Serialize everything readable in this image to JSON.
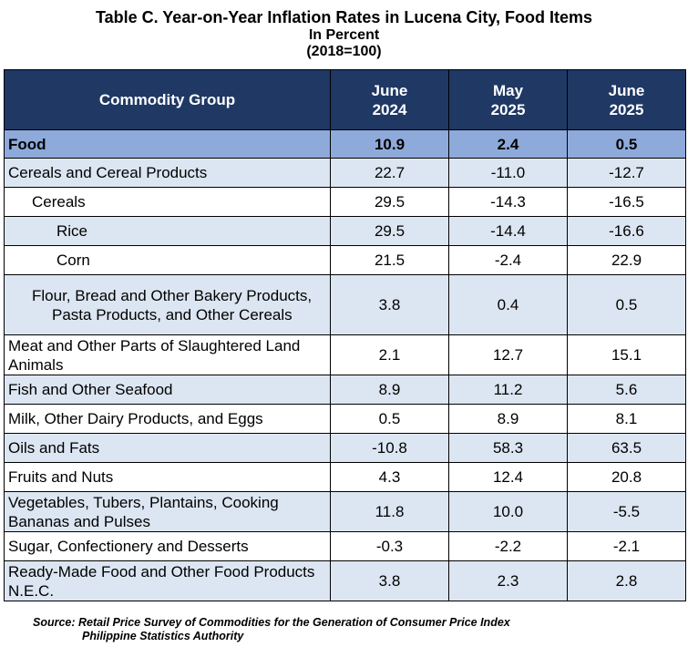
{
  "title": "Table C. Year-on-Year Inflation Rates in Lucena City, Food Items",
  "subtitle": "In Percent",
  "base": "(2018=100)",
  "columns": [
    "Commodity Group",
    "June\n2024",
    "May\n2025",
    "June\n2025"
  ],
  "rows": [
    {
      "label": "Food",
      "values": [
        "10.9",
        "2.4",
        "0.5"
      ]
    },
    {
      "label": "Cereals and Cereal Products",
      "values": [
        "22.7",
        "-11.0",
        "-12.7"
      ]
    },
    {
      "label": "Cereals",
      "values": [
        "29.5",
        "-14.3",
        "-16.5"
      ]
    },
    {
      "label": "Rice",
      "values": [
        "29.5",
        "-14.4",
        "-16.6"
      ]
    },
    {
      "label": "Corn",
      "values": [
        "21.5",
        "-2.4",
        "22.9"
      ]
    },
    {
      "label": "Flour, Bread and Other Bakery Products, Pasta Products, and Other Cereals",
      "values": [
        "3.8",
        "0.4",
        "0.5"
      ]
    },
    {
      "label": "Meat and Other Parts of Slaughtered Land Animals",
      "values": [
        "2.1",
        "12.7",
        "15.1"
      ]
    },
    {
      "label": "Fish and Other Seafood",
      "values": [
        "8.9",
        "11.2",
        "5.6"
      ]
    },
    {
      "label": "Milk, Other Dairy Products, and Eggs",
      "values": [
        "0.5",
        "8.9",
        "8.1"
      ]
    },
    {
      "label": "Oils and Fats",
      "values": [
        "-10.8",
        "58.3",
        "63.5"
      ]
    },
    {
      "label": "Fruits and Nuts",
      "values": [
        "4.3",
        "12.4",
        "20.8"
      ]
    },
    {
      "label": "Vegetables, Tubers, Plantains, Cooking Bananas and Pulses",
      "values": [
        "11.8",
        "10.0",
        "-5.5"
      ]
    },
    {
      "label": "Sugar, Confectionery and Desserts",
      "values": [
        "-0.3",
        "-2.2",
        "-2.1"
      ]
    },
    {
      "label": "Ready-Made Food and Other Food Products N.E.C.",
      "values": [
        "3.8",
        "2.3",
        "2.8"
      ]
    }
  ],
  "source_line1": "Source: Retail Price Survey of Commodities for the Generation of Consumer Price Index",
  "source_line2": "Philippine Statistics Authority"
}
